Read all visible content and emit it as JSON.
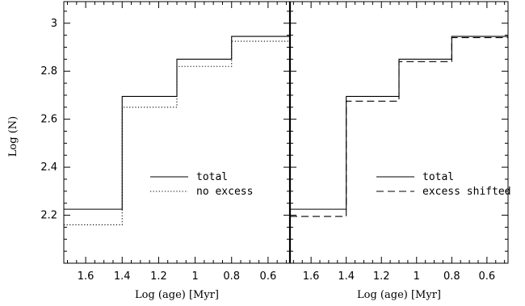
{
  "chart_data": [
    {
      "type": "line",
      "step": true,
      "xlabel": "Log (age) [Myr]",
      "ylabel": "Log (N)",
      "xlim": [
        1.72,
        0.48
      ],
      "ylim": [
        2.0,
        3.09
      ],
      "x_reversed": true,
      "xticks": [
        1.6,
        1.4,
        1.2,
        1.0,
        0.8,
        0.6
      ],
      "yticks": [
        2.2,
        2.4,
        2.6,
        2.8,
        3.0
      ],
      "xtick_labels": [
        "1.6",
        "1.4",
        "1.2",
        "1",
        "0.8",
        "0.6"
      ],
      "ytick_labels": [
        "2.2",
        "2.4",
        "2.6",
        "2.8",
        "3"
      ],
      "legend_position": "center-right",
      "series": [
        {
          "name": "total",
          "style": "solid",
          "edges": [
            1.72,
            1.4,
            1.1,
            0.8,
            0.48
          ],
          "values": [
            2.225,
            2.695,
            2.85,
            2.945
          ]
        },
        {
          "name": "no excess",
          "style": "dotted",
          "edges": [
            1.72,
            1.4,
            1.1,
            0.8,
            0.48
          ],
          "values": [
            2.16,
            2.65,
            2.82,
            2.925
          ]
        }
      ]
    },
    {
      "type": "line",
      "step": true,
      "xlabel": "Log (age) [Myr]",
      "ylabel": "",
      "xlim": [
        1.72,
        0.48
      ],
      "ylim": [
        2.0,
        3.09
      ],
      "x_reversed": true,
      "xticks": [
        1.6,
        1.4,
        1.2,
        1.0,
        0.8,
        0.6
      ],
      "xtick_labels": [
        "1.6",
        "1.4",
        "1.2",
        "1",
        "0.8",
        "0.6"
      ],
      "legend_position": "center-right",
      "series": [
        {
          "name": "total",
          "style": "solid",
          "edges": [
            1.72,
            1.4,
            1.1,
            0.8,
            0.48
          ],
          "values": [
            2.225,
            2.695,
            2.85,
            2.945
          ]
        },
        {
          "name": "excess shifted",
          "style": "dashed",
          "edges": [
            1.72,
            1.4,
            1.1,
            0.8,
            0.48
          ],
          "values": [
            2.195,
            2.675,
            2.84,
            2.94
          ]
        }
      ]
    }
  ]
}
